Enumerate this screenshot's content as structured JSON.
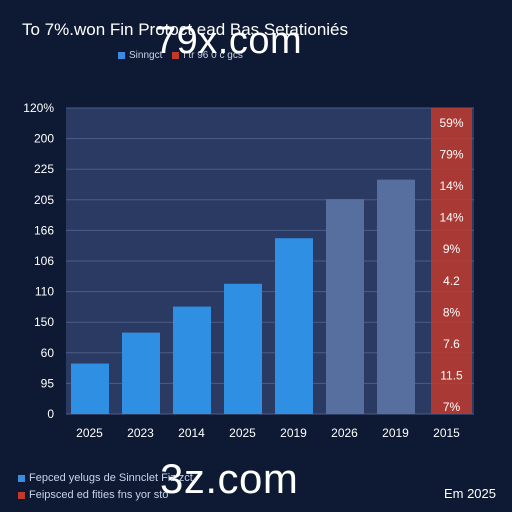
{
  "title": "To 7%.won Fin Protoct ead Bas Setationiés",
  "legend_top": [
    {
      "label": "Sinngct",
      "color": "#3c8be0"
    },
    {
      "label": "l tr  96 0 c gcs",
      "color": "#c0392b"
    }
  ],
  "watermarks": [
    "79x.com",
    "3z.com"
  ],
  "legend_bottom": [
    {
      "label": "Fepced yelugs de Sinnclet Fiz zct.",
      "color": "#3c8be0"
    },
    {
      "label": "Feipsced ed fities fns yor sto",
      "color": "#c0392b"
    }
  ],
  "corner_label": "Em 2025",
  "colors": {
    "background": "#0e1a33",
    "plot_bg": "#2a3a63",
    "bar_blue": "#2f8fe3",
    "bar_slate": "#566f9f",
    "band_red": "#c0392b"
  },
  "chart_data": {
    "type": "bar",
    "title": "To 7%.won Fin Protoct ead Bas Setationiés",
    "xlabel": "",
    "ylabel": "",
    "y_tick_labels": [
      "120%",
      "200",
      "225",
      "205",
      "166",
      "106",
      "110",
      "150",
      "60",
      "95",
      "0"
    ],
    "categories": [
      "2025",
      "2023",
      "2014",
      "2025",
      "2019",
      "2026",
      "2019"
    ],
    "values": [
      15.5,
      25,
      33,
      40,
      54,
      66,
      72
    ],
    "bar_styles": [
      "blue",
      "blue",
      "blue",
      "blue",
      "blue",
      "slate",
      "slate"
    ],
    "ylim": [
      0,
      94
    ],
    "grid": true,
    "red_band": {
      "category": "2015",
      "labels": [
        "59%",
        "79%",
        "14%",
        "14%",
        "9%",
        "4.2",
        "8%",
        "7.6",
        "11.5",
        "7%"
      ]
    }
  }
}
